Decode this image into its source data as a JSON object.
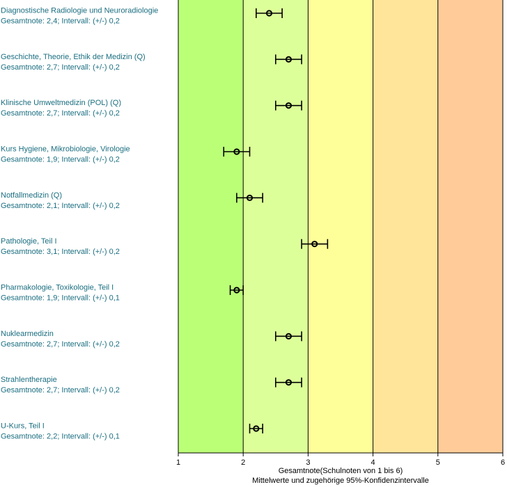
{
  "chart_data": {
    "type": "scatter",
    "orientation": "horizontal-error-bars",
    "xlim": [
      1,
      6
    ],
    "x_ticks": [
      "1",
      "2",
      "3",
      "4",
      "5",
      "6"
    ],
    "xlabel_line1": "Gesamtnote(Schulnoten von 1 bis 6)",
    "xlabel_line2": "Mittelwerte und zugehörige 95%-Konfidenzintervalle",
    "band_colors": [
      "#bbff77",
      "#ddff99",
      "#ffff99",
      "#ffe599",
      "#ffcc99"
    ],
    "label_color": "#1a6e80",
    "items": [
      {
        "name": "Diagnostische Radiologie und Neuroradiologie",
        "summary": "Gesamtnote: 2,4;  Intervall: (+/-) 0,2",
        "value": 2.4,
        "interval": 0.2
      },
      {
        "name": "Geschichte, Theorie, Ethik der Medizin (Q)",
        "summary": "Gesamtnote: 2,7;  Intervall: (+/-) 0,2",
        "value": 2.7,
        "interval": 0.2
      },
      {
        "name": "Klinische Umweltmedizin (POL) (Q)",
        "summary": "Gesamtnote: 2,7;  Intervall: (+/-) 0,2",
        "value": 2.7,
        "interval": 0.2
      },
      {
        "name": "Kurs Hygiene, Mikrobiologie, Virologie",
        "summary": "Gesamtnote: 1,9;  Intervall: (+/-) 0,2",
        "value": 1.9,
        "interval": 0.2
      },
      {
        "name": "Notfallmedizin (Q)",
        "summary": "Gesamtnote: 2,1;  Intervall: (+/-) 0,2",
        "value": 2.1,
        "interval": 0.2
      },
      {
        "name": "Pathologie, Teil I",
        "summary": "Gesamtnote: 3,1;  Intervall: (+/-) 0,2",
        "value": 3.1,
        "interval": 0.2
      },
      {
        "name": "Pharmakologie, Toxikologie, Teil I",
        "summary": "Gesamtnote: 1,9;  Intervall: (+/-) 0,1",
        "value": 1.9,
        "interval": 0.1
      },
      {
        "name": "Nuklearmedizin",
        "summary": "Gesamtnote: 2,7;  Intervall: (+/-) 0,2",
        "value": 2.7,
        "interval": 0.2
      },
      {
        "name": "Strahlentherapie",
        "summary": "Gesamtnote: 2,7;  Intervall: (+/-) 0,2",
        "value": 2.7,
        "interval": 0.2
      },
      {
        "name": "U-Kurs, Teil I",
        "summary": "Gesamtnote: 2,2;  Intervall: (+/-) 0,1",
        "value": 2.2,
        "interval": 0.1
      }
    ]
  }
}
